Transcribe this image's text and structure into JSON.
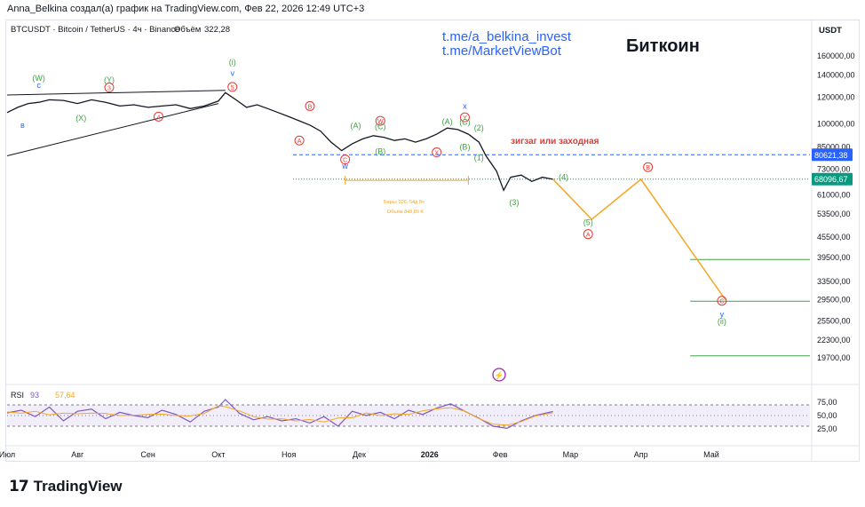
{
  "header": {
    "text": "Anna_Belkina создал(а) график на TradingView.com, Фев 22, 2026 12:49 UTC+3"
  },
  "chart_data": {
    "type": "line",
    "symbol_line": "BTCUSDT · Bitcoin / TetherUS · 4ч · Binance",
    "volume_label": "Объём",
    "volume_value": "322,28",
    "title": "Биткоин",
    "links": [
      "t.me/a_belkina_invest",
      "t.me/MarketViewBot"
    ],
    "currency": "USDT",
    "y_scale": "log",
    "ylim": [
      16500,
      182000
    ],
    "y_ticks": [
      {
        "v": 160000,
        "label": "160000,00"
      },
      {
        "v": 140000,
        "label": "140000,00"
      },
      {
        "v": 120000,
        "label": "120000,00"
      },
      {
        "v": 100000,
        "label": "100000,00"
      },
      {
        "v": 85000,
        "label": "85000,00"
      },
      {
        "v": 73000,
        "label": "73000,00"
      },
      {
        "v": 61000,
        "label": "61000,00"
      },
      {
        "v": 53500,
        "label": "53500,00"
      },
      {
        "v": 45500,
        "label": "45500,00"
      },
      {
        "v": 39500,
        "label": "39500,00"
      },
      {
        "v": 33500,
        "label": "33500,00"
      },
      {
        "v": 29500,
        "label": "29500,00"
      },
      {
        "v": 25500,
        "label": "25500,00"
      },
      {
        "v": 22300,
        "label": "22300,00"
      },
      {
        "v": 19700,
        "label": "19700,00"
      }
    ],
    "price_tags": [
      {
        "v": 80621.38,
        "label": "80621,38",
        "color": "#2962ff"
      },
      {
        "v": 68096.67,
        "label": "68096,67",
        "color": "#089981"
      }
    ],
    "x_range": [
      0,
      11.4
    ],
    "x_ticks": [
      {
        "m": 0,
        "label": "Июл"
      },
      {
        "m": 1,
        "label": "Авг"
      },
      {
        "m": 2,
        "label": "Сен"
      },
      {
        "m": 3,
        "label": "Окт"
      },
      {
        "m": 4,
        "label": "Ноя"
      },
      {
        "m": 5,
        "label": "Дек"
      },
      {
        "m": 6,
        "label": "2026"
      },
      {
        "m": 7,
        "label": "Фев"
      },
      {
        "m": 8,
        "label": "Мар"
      },
      {
        "m": 9,
        "label": "Апр"
      },
      {
        "m": 10,
        "label": "Май"
      }
    ],
    "price_series": {
      "name": "BTCUSDT",
      "x": [
        0,
        0.15,
        0.3,
        0.45,
        0.6,
        0.8,
        1.0,
        1.2,
        1.4,
        1.6,
        1.8,
        2.0,
        2.2,
        2.4,
        2.6,
        2.8,
        3.0,
        3.1,
        3.25,
        3.4,
        3.55,
        3.7,
        3.85,
        4.0,
        4.15,
        4.3,
        4.45,
        4.6,
        4.75,
        4.9,
        5.05,
        5.2,
        5.35,
        5.5,
        5.65,
        5.8,
        5.95,
        6.1,
        6.25,
        6.4,
        6.55,
        6.7,
        6.8,
        6.95,
        7.05,
        7.15,
        7.3,
        7.45,
        7.6,
        7.75
      ],
      "y": [
        108000,
        112000,
        115000,
        116000,
        118000,
        117500,
        115000,
        118000,
        116000,
        113000,
        114000,
        112000,
        113000,
        114000,
        111000,
        113000,
        117000,
        124000,
        118000,
        112000,
        114000,
        111000,
        108000,
        105000,
        102000,
        99000,
        95000,
        88000,
        83000,
        87000,
        90000,
        92000,
        91000,
        89000,
        90000,
        88000,
        90000,
        93000,
        97000,
        96000,
        93000,
        88000,
        80000,
        72000,
        63000,
        69000,
        70000,
        67000,
        69000,
        68000
      ]
    },
    "projection": {
      "x": [
        7.75,
        8.3,
        9.0,
        10.2
      ],
      "y": [
        68096.67,
        51500,
        68000,
        29500
      ]
    },
    "support_lines": [
      {
        "v": 39000,
        "x0": 9.7,
        "x1": 11.4
      },
      {
        "v": 29200,
        "x0": 9.7,
        "x1": 11.4
      },
      {
        "v": 20000,
        "x0": 9.7,
        "x1": 11.4
      }
    ],
    "trend_lines": [
      {
        "x0": 0.0,
        "y0": 122000,
        "x1": 3.1,
        "y1": 126000
      },
      {
        "x0": 0.0,
        "y0": 80000,
        "x1": 3.0,
        "y1": 115000
      }
    ],
    "wave_labels": [
      {
        "x": 0.45,
        "v": 137000,
        "text": "(W)",
        "color": "#43a047",
        "circle": false
      },
      {
        "x": 0.45,
        "v": 130500,
        "text": "c",
        "color": "#2962ff",
        "circle": false
      },
      {
        "x": 0.22,
        "v": 99000,
        "text": "в",
        "color": "#2962ff",
        "circle": false
      },
      {
        "x": 1.45,
        "v": 135500,
        "text": "(Y)",
        "color": "#43a047",
        "circle": false
      },
      {
        "x": 1.45,
        "v": 128500,
        "text": "3",
        "color": "#e53935",
        "circle": true
      },
      {
        "x": 1.05,
        "v": 104000,
        "text": "(X)",
        "color": "#43a047",
        "circle": false
      },
      {
        "x": 2.15,
        "v": 105000,
        "text": "4",
        "color": "#e53935",
        "circle": true
      },
      {
        "x": 3.2,
        "v": 153000,
        "text": "(i)",
        "color": "#43a047",
        "circle": false
      },
      {
        "x": 3.2,
        "v": 142000,
        "text": "v",
        "color": "#2962ff",
        "circle": false
      },
      {
        "x": 3.2,
        "v": 129000,
        "text": "5",
        "color": "#e53935",
        "circle": true
      },
      {
        "x": 4.3,
        "v": 113000,
        "text": "B",
        "color": "#e53935",
        "circle": true
      },
      {
        "x": 4.15,
        "v": 89000,
        "text": "A",
        "color": "#e53935",
        "circle": true
      },
      {
        "x": 4.8,
        "v": 78000,
        "text": "C",
        "color": "#e53935",
        "circle": true
      },
      {
        "x": 4.8,
        "v": 74500,
        "text": "w",
        "color": "#2962ff",
        "circle": false
      },
      {
        "x": 4.95,
        "v": 98500,
        "text": "(A)",
        "color": "#43a047",
        "circle": false
      },
      {
        "x": 5.3,
        "v": 102000,
        "text": "W",
        "color": "#e53935",
        "circle": true
      },
      {
        "x": 5.3,
        "v": 98000,
        "text": "(C)",
        "color": "#43a047",
        "circle": false
      },
      {
        "x": 5.3,
        "v": 82500,
        "text": "(B)",
        "color": "#43a047",
        "circle": false
      },
      {
        "x": 6.1,
        "v": 82000,
        "text": "X",
        "color": "#e53935",
        "circle": true
      },
      {
        "x": 6.25,
        "v": 101500,
        "text": "(A)",
        "color": "#43a047",
        "circle": false
      },
      {
        "x": 6.5,
        "v": 113000,
        "text": "x",
        "color": "#2962ff",
        "circle": false
      },
      {
        "x": 6.5,
        "v": 104500,
        "text": "Y",
        "color": "#e53935",
        "circle": true
      },
      {
        "x": 6.5,
        "v": 101000,
        "text": "(C)",
        "color": "#43a047",
        "circle": false
      },
      {
        "x": 6.5,
        "v": 85000,
        "text": "(B)",
        "color": "#43a047",
        "circle": false
      },
      {
        "x": 6.7,
        "v": 97000,
        "text": "(2)",
        "color": "#43a047",
        "circle": false
      },
      {
        "x": 6.7,
        "v": 79000,
        "text": "(1)",
        "color": "#43a047",
        "circle": false
      },
      {
        "x": 7.2,
        "v": 58000,
        "text": "(3)",
        "color": "#43a047",
        "circle": false
      },
      {
        "x": 7.9,
        "v": 69000,
        "text": "(4)",
        "color": "#43a047",
        "circle": false
      },
      {
        "x": 8.25,
        "v": 50500,
        "text": "(5)",
        "color": "#43a047",
        "circle": false
      },
      {
        "x": 8.25,
        "v": 46500,
        "text": "A",
        "color": "#e53935",
        "circle": true
      },
      {
        "x": 9.1,
        "v": 74000,
        "text": "B",
        "color": "#e53935",
        "circle": true
      },
      {
        "x": 10.15,
        "v": 29300,
        "text": "C",
        "color": "#e53935",
        "circle": true
      },
      {
        "x": 10.15,
        "v": 26700,
        "text": "y",
        "color": "#2962ff",
        "circle": false
      },
      {
        "x": 10.15,
        "v": 25400,
        "text": "(ii)",
        "color": "#43a047",
        "circle": false
      }
    ],
    "annotations": [
      {
        "x": 7.15,
        "v": 87000,
        "text": "зигзаг или заходная",
        "color": "#e53935"
      }
    ],
    "range_tool": {
      "x0": 4.8,
      "x1": 6.55,
      "v": 67500,
      "line1": "Бары: 326, 54д 8ч",
      "line2": "Объём 849,89 K"
    },
    "rsi": {
      "label": "RSI",
      "value_a": "93",
      "value_b": "57,64",
      "ylim": [
        0,
        100
      ],
      "ticks": [
        {
          "v": 75,
          "label": "75,00"
        },
        {
          "v": 50,
          "label": "50,00"
        },
        {
          "v": 25,
          "label": "25,00"
        }
      ],
      "band": [
        30,
        70
      ],
      "x": [
        0,
        0.2,
        0.4,
        0.6,
        0.8,
        1.0,
        1.2,
        1.4,
        1.6,
        1.8,
        2.0,
        2.2,
        2.4,
        2.6,
        2.8,
        3.0,
        3.1,
        3.3,
        3.5,
        3.7,
        3.9,
        4.1,
        4.3,
        4.5,
        4.7,
        4.9,
        5.1,
        5.3,
        5.5,
        5.7,
        5.9,
        6.1,
        6.3,
        6.5,
        6.7,
        6.9,
        7.1,
        7.3,
        7.5,
        7.75
      ],
      "values": [
        55,
        60,
        48,
        66,
        40,
        58,
        62,
        44,
        56,
        50,
        46,
        60,
        52,
        38,
        58,
        66,
        80,
        54,
        42,
        48,
        40,
        44,
        36,
        48,
        30,
        58,
        50,
        56,
        44,
        60,
        52,
        64,
        72,
        58,
        45,
        30,
        26,
        40,
        50,
        57.64
      ]
    }
  },
  "footer": {
    "brand": "TradingView"
  }
}
